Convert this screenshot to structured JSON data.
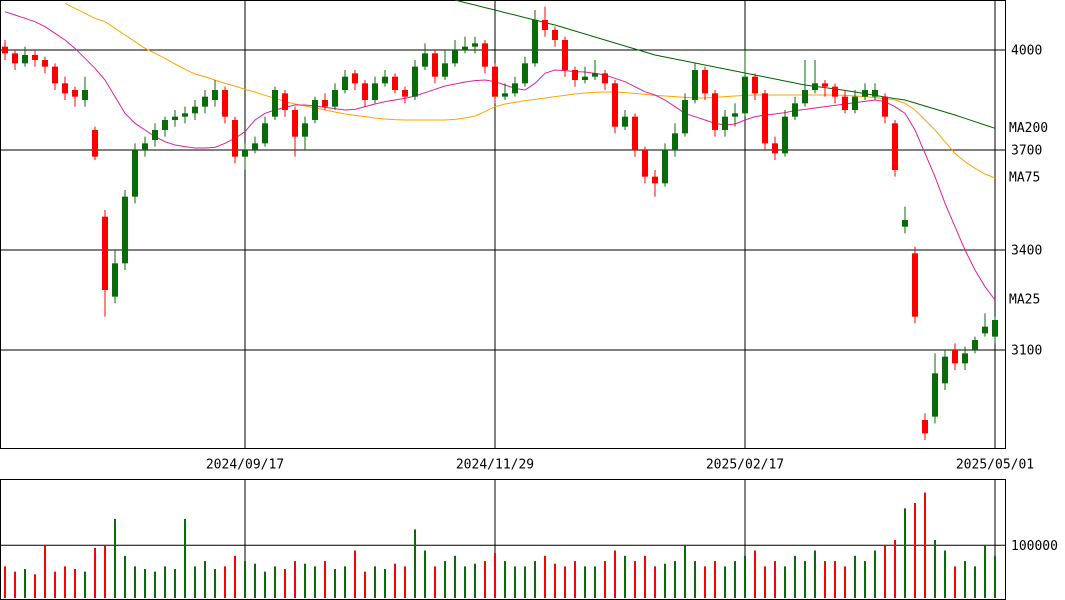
{
  "chart_data": {
    "type": "candlestick",
    "categories": [
      null,
      null,
      null,
      null,
      null,
      null,
      null,
      null,
      null,
      null,
      null,
      null,
      null,
      null,
      null,
      null,
      null,
      null,
      null,
      null,
      null,
      null,
      null,
      null,
      "2024/09/17",
      null,
      null,
      null,
      null,
      null,
      null,
      null,
      null,
      null,
      null,
      null,
      null,
      null,
      null,
      null,
      null,
      null,
      null,
      null,
      null,
      null,
      null,
      null,
      null,
      "2024/11/29",
      null,
      null,
      null,
      null,
      null,
      null,
      null,
      null,
      null,
      null,
      null,
      null,
      null,
      null,
      null,
      null,
      null,
      null,
      null,
      null,
      null,
      null,
      null,
      null,
      "2025/02/17",
      null,
      null,
      null,
      null,
      null,
      null,
      null,
      null,
      null,
      null,
      null,
      null,
      null,
      null,
      null,
      null,
      null,
      null,
      null,
      null,
      null,
      null,
      null,
      null,
      "2025/05/01"
    ],
    "open": [
      4010,
      3990,
      3960,
      3985,
      3970,
      3950,
      3900,
      3880,
      3850,
      3760,
      3500,
      3260,
      3360,
      3560,
      3700,
      3730,
      3760,
      3790,
      3800,
      3810,
      3830,
      3850,
      3880,
      3790,
      3680,
      3700,
      3720,
      3800,
      3870,
      3820,
      3740,
      3790,
      3850,
      3830,
      3880,
      3930,
      3900,
      3850,
      3900,
      3920,
      3880,
      3860,
      3950,
      3990,
      3920,
      3960,
      4000,
      4010,
      4020,
      3950,
      3860,
      3870,
      3900,
      3960,
      4090,
      4060,
      4030,
      3940,
      3910,
      3920,
      3930,
      3900,
      3770,
      3800,
      3700,
      3620,
      3600,
      3700,
      3750,
      3850,
      3940,
      3870,
      3760,
      3800,
      3810,
      3920,
      3870,
      3720,
      3690,
      3800,
      3840,
      3880,
      3900,
      3890,
      3860,
      3820,
      3860,
      3860,
      3860,
      3780,
      3470,
      3390,
      2890,
      2900,
      3000,
      3100,
      3060,
      3100,
      3150,
      3140
    ],
    "high": [
      4030,
      4000,
      4010,
      4000,
      3980,
      3960,
      3920,
      3890,
      3920,
      3770,
      3520,
      3400,
      3580,
      3720,
      3740,
      3780,
      3800,
      3820,
      3830,
      3850,
      3880,
      3910,
      3890,
      3800,
      3720,
      3740,
      3800,
      3890,
      3880,
      3830,
      3800,
      3860,
      3870,
      3900,
      3940,
      3940,
      3910,
      3920,
      3940,
      3930,
      3890,
      3970,
      4020,
      4000,
      4000,
      4030,
      4040,
      4040,
      4030,
      3960,
      3900,
      3920,
      3980,
      4120,
      4130,
      4070,
      4040,
      3950,
      3950,
      3970,
      3940,
      3910,
      3820,
      3810,
      3710,
      3640,
      3720,
      3780,
      3870,
      3960,
      3950,
      3880,
      3820,
      3840,
      4000,
      3930,
      3880,
      3740,
      3820,
      3860,
      3970,
      3970,
      3910,
      3900,
      3880,
      3880,
      3900,
      3900,
      3870,
      3790,
      3530,
      3410,
      2910,
      3090,
      3100,
      3120,
      3110,
      3140,
      3210,
      3200
    ],
    "low": [
      3970,
      3940,
      3950,
      3950,
      3930,
      3880,
      3850,
      3830,
      3830,
      3670,
      3200,
      3240,
      3340,
      3540,
      3680,
      3710,
      3740,
      3770,
      3780,
      3790,
      3810,
      3830,
      3780,
      3660,
      3640,
      3690,
      3710,
      3790,
      3800,
      3680,
      3700,
      3780,
      3820,
      3820,
      3870,
      3880,
      3830,
      3840,
      3890,
      3870,
      3840,
      3850,
      3940,
      3900,
      3910,
      3950,
      3990,
      3990,
      3930,
      3840,
      3850,
      3860,
      3890,
      3950,
      4040,
      4010,
      3920,
      3890,
      3900,
      3910,
      3880,
      3750,
      3760,
      3680,
      3600,
      3560,
      3590,
      3680,
      3740,
      3840,
      3850,
      3740,
      3740,
      3770,
      3800,
      3850,
      3700,
      3670,
      3680,
      3790,
      3830,
      3870,
      3860,
      3840,
      3810,
      3810,
      3850,
      3850,
      3780,
      3620,
      3450,
      3180,
      2830,
      2880,
      2980,
      3040,
      3040,
      3090,
      3140,
      3120
    ],
    "close": [
      3990,
      3960,
      3985,
      3970,
      3950,
      3900,
      3870,
      3860,
      3880,
      3680,
      3280,
      3360,
      3560,
      3700,
      3720,
      3760,
      3790,
      3800,
      3810,
      3830,
      3860,
      3880,
      3800,
      3680,
      3700,
      3720,
      3780,
      3880,
      3820,
      3740,
      3780,
      3850,
      3830,
      3880,
      3920,
      3900,
      3850,
      3900,
      3920,
      3880,
      3860,
      3950,
      3990,
      3920,
      3960,
      4000,
      4010,
      4020,
      3950,
      3860,
      3870,
      3900,
      3960,
      4090,
      4060,
      4030,
      3940,
      3910,
      3920,
      3930,
      3900,
      3770,
      3800,
      3700,
      3620,
      3600,
      3700,
      3750,
      3850,
      3940,
      3870,
      3760,
      3800,
      3810,
      3920,
      3870,
      3720,
      3690,
      3800,
      3840,
      3880,
      3900,
      3890,
      3860,
      3820,
      3860,
      3880,
      3880,
      3800,
      3640,
      3490,
      3200,
      2850,
      3030,
      3080,
      3060,
      3090,
      3130,
      3170,
      3190
    ],
    "up_color": "#0a6b0a",
    "down_color": "#ff0000",
    "ylim": [
      2806,
      4150
    ],
    "yticks": [
      3100,
      3400,
      3700,
      4000
    ],
    "grid": true,
    "ma": [
      {
        "name": "MA200",
        "color": "#006400",
        "values": [
          null,
          null,
          null,
          null,
          null,
          null,
          null,
          null,
          null,
          null,
          null,
          null,
          null,
          null,
          null,
          null,
          null,
          null,
          null,
          null,
          null,
          null,
          null,
          null,
          null,
          null,
          null,
          null,
          null,
          null,
          null,
          null,
          null,
          null,
          null,
          null,
          null,
          null,
          null,
          null,
          null,
          null,
          null,
          null,
          null,
          4150,
          4142,
          4135,
          4127,
          4120,
          4112,
          4105,
          4097,
          4090,
          4082,
          4075,
          4066,
          4057,
          4048,
          4039,
          4030,
          4021,
          4012,
          4003,
          3994,
          3985,
          3979,
          3973,
          3967,
          3961,
          3955,
          3949,
          3943,
          3937,
          3931,
          3925,
          3919,
          3913,
          3907,
          3901,
          3895,
          3891,
          3887,
          3883,
          3879,
          3874,
          3869,
          3864,
          3859,
          3854,
          3850,
          3841,
          3832,
          3823,
          3814,
          3805,
          3795,
          3785,
          3775,
          3765
        ]
      },
      {
        "name": "MA75",
        "color": "#ffa500",
        "values": [
          null,
          null,
          null,
          null,
          null,
          null,
          4140,
          4125,
          4110,
          4095,
          4085,
          4065,
          4045,
          4025,
          4005,
          3990,
          3975,
          3958,
          3942,
          3928,
          3920,
          3910,
          3900,
          3892,
          3882,
          3874,
          3864,
          3855,
          3846,
          3838,
          3832,
          3826,
          3820,
          3814,
          3808,
          3804,
          3800,
          3796,
          3793,
          3791,
          3790,
          3790,
          3790,
          3790,
          3790,
          3792,
          3796,
          3802,
          3815,
          3830,
          3838,
          3843,
          3848,
          3852,
          3856,
          3860,
          3864,
          3868,
          3871,
          3873,
          3874,
          3874,
          3872,
          3870,
          3867,
          3864,
          3862,
          3860,
          3858,
          3856,
          3856,
          3858,
          3860,
          3862,
          3864,
          3865,
          3865,
          3865,
          3865,
          3865,
          3865,
          3865,
          3865,
          3865,
          3864,
          3862,
          3860,
          3857,
          3854,
          3850,
          3840,
          3820,
          3790,
          3760,
          3725,
          3690,
          3665,
          3645,
          3628,
          3616
        ]
      },
      {
        "name": "MA25",
        "color": "#e0209a",
        "values": [
          4115,
          4105,
          4095,
          4085,
          4070,
          4050,
          4030,
          4005,
          3975,
          3945,
          3910,
          3860,
          3810,
          3780,
          3760,
          3740,
          3725,
          3715,
          3710,
          3706,
          3706,
          3708,
          3720,
          3735,
          3755,
          3790,
          3810,
          3820,
          3828,
          3835,
          3835,
          3832,
          3828,
          3824,
          3820,
          3822,
          3830,
          3838,
          3845,
          3850,
          3855,
          3862,
          3872,
          3882,
          3892,
          3898,
          3904,
          3908,
          3910,
          3905,
          3895,
          3885,
          3880,
          3900,
          3930,
          3940,
          3938,
          3935,
          3934,
          3930,
          3925,
          3915,
          3905,
          3890,
          3875,
          3865,
          3850,
          3830,
          3810,
          3800,
          3790,
          3780,
          3775,
          3778,
          3790,
          3800,
          3805,
          3808,
          3812,
          3818,
          3822,
          3826,
          3830,
          3834,
          3838,
          3842,
          3846,
          3850,
          3845,
          3830,
          3810,
          3760,
          3690,
          3620,
          3540,
          3470,
          3400,
          3340,
          3290,
          3250
        ]
      }
    ],
    "volume": {
      "ylim": [
        0,
        220000
      ],
      "yticks": [
        100000
      ],
      "values": [
        60000,
        50000,
        55000,
        45000,
        100000,
        50000,
        60000,
        55000,
        50000,
        95000,
        100000,
        150000,
        80000,
        60000,
        55000,
        50000,
        60000,
        55000,
        150000,
        60000,
        70000,
        55000,
        60000,
        80000,
        70000,
        65000,
        50000,
        60000,
        55000,
        70000,
        65000,
        60000,
        70000,
        55000,
        60000,
        90000,
        50000,
        60000,
        55000,
        65000,
        60000,
        130000,
        90000,
        60000,
        70000,
        80000,
        60000,
        65000,
        70000,
        85000,
        70000,
        60000,
        60000,
        70000,
        80000,
        65000,
        60000,
        70000,
        60000,
        60000,
        70000,
        90000,
        80000,
        70000,
        80000,
        60000,
        65000,
        70000,
        100000,
        70000,
        60000,
        70000,
        60000,
        70000,
        80000,
        90000,
        60000,
        70000,
        60000,
        80000,
        70000,
        90000,
        70000,
        70000,
        60000,
        80000,
        70000,
        90000,
        100000,
        110000,
        170000,
        180000,
        200000,
        110000,
        90000,
        60000,
        70000,
        60000,
        100000,
        80000
      ]
    }
  }
}
